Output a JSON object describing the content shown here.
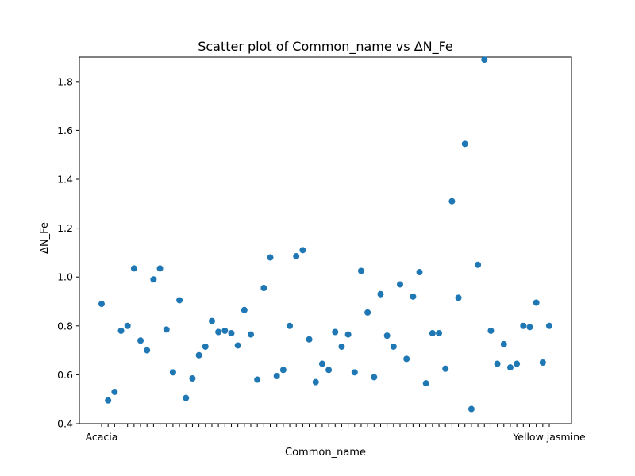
{
  "chart_data": {
    "type": "scatter",
    "title": "Scatter plot of Common_name vs  ΔN_Fe",
    "xlabel": "Common_name",
    "ylabel": "ΔN_Fe",
    "ylim": [
      0.4,
      1.9
    ],
    "yticks": [
      "0.4",
      "0.6",
      "0.8",
      "1.0",
      "1.2",
      "1.4",
      "1.6",
      "1.8"
    ],
    "grid": false,
    "marker_color": "#1f77b4",
    "first_category_label": "Acacia",
    "last_category_label": "Yellow jasmine",
    "values": [
      0.89,
      0.495,
      0.53,
      0.78,
      0.8,
      1.035,
      0.74,
      0.7,
      0.99,
      1.035,
      0.785,
      0.61,
      0.905,
      0.505,
      0.585,
      0.68,
      0.715,
      0.82,
      0.775,
      0.78,
      0.77,
      0.72,
      0.865,
      0.765,
      0.58,
      0.955,
      1.08,
      0.595,
      0.62,
      0.8,
      1.085,
      1.11,
      0.745,
      0.57,
      0.645,
      0.62,
      0.775,
      0.715,
      0.765,
      0.61,
      1.025,
      0.855,
      0.59,
      0.93,
      0.76,
      0.715,
      0.97,
      0.665,
      0.92,
      1.02,
      0.565,
      0.77,
      0.77,
      0.625,
      1.31,
      0.915,
      1.545,
      0.46,
      1.05,
      1.89,
      0.78,
      0.645,
      0.725,
      0.63,
      0.645,
      0.8,
      0.795,
      0.895,
      0.65,
      0.8
    ]
  }
}
